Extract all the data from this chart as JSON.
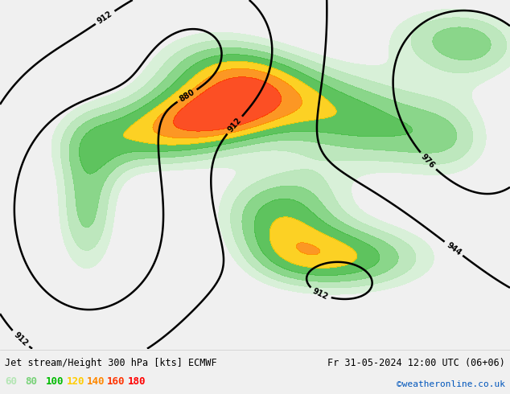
{
  "title_left": "Jet stream/Height 300 hPa [kts] ECMWF",
  "title_right": "Fr 31-05-2024 12:00 UTC (06+06)",
  "credit": "©weatheronline.co.uk",
  "legend_values": [
    "60",
    "80",
    "100",
    "120",
    "140",
    "160",
    "180"
  ],
  "legend_colors": [
    "#b4e6b4",
    "#78d278",
    "#00bb00",
    "#ffcc00",
    "#ff8800",
    "#ff3300",
    "#ff0000"
  ],
  "bg_color": "#f0f0f0",
  "ocean_color": "#e8e8e8",
  "land_color": "#f0f0f0",
  "coast_color": "#aaaaaa",
  "border_color": "#aaaaaa",
  "contour_color": "#000000",
  "title_fontsize": 9,
  "credit_color": "#0055bb",
  "figsize": [
    6.34,
    4.9
  ],
  "dpi": 100,
  "extent": [
    -55,
    45,
    25,
    75
  ],
  "jet_levels": [
    60,
    80,
    100,
    120,
    140,
    160,
    180
  ],
  "jet_colors": [
    "#d4f0d4",
    "#b4e6b4",
    "#78d278",
    "#44bb44",
    "#ffcc00",
    "#ff8800",
    "#ff3300"
  ],
  "contour_levels": [
    880,
    912,
    944,
    976
  ],
  "contour_lw": 1.8
}
